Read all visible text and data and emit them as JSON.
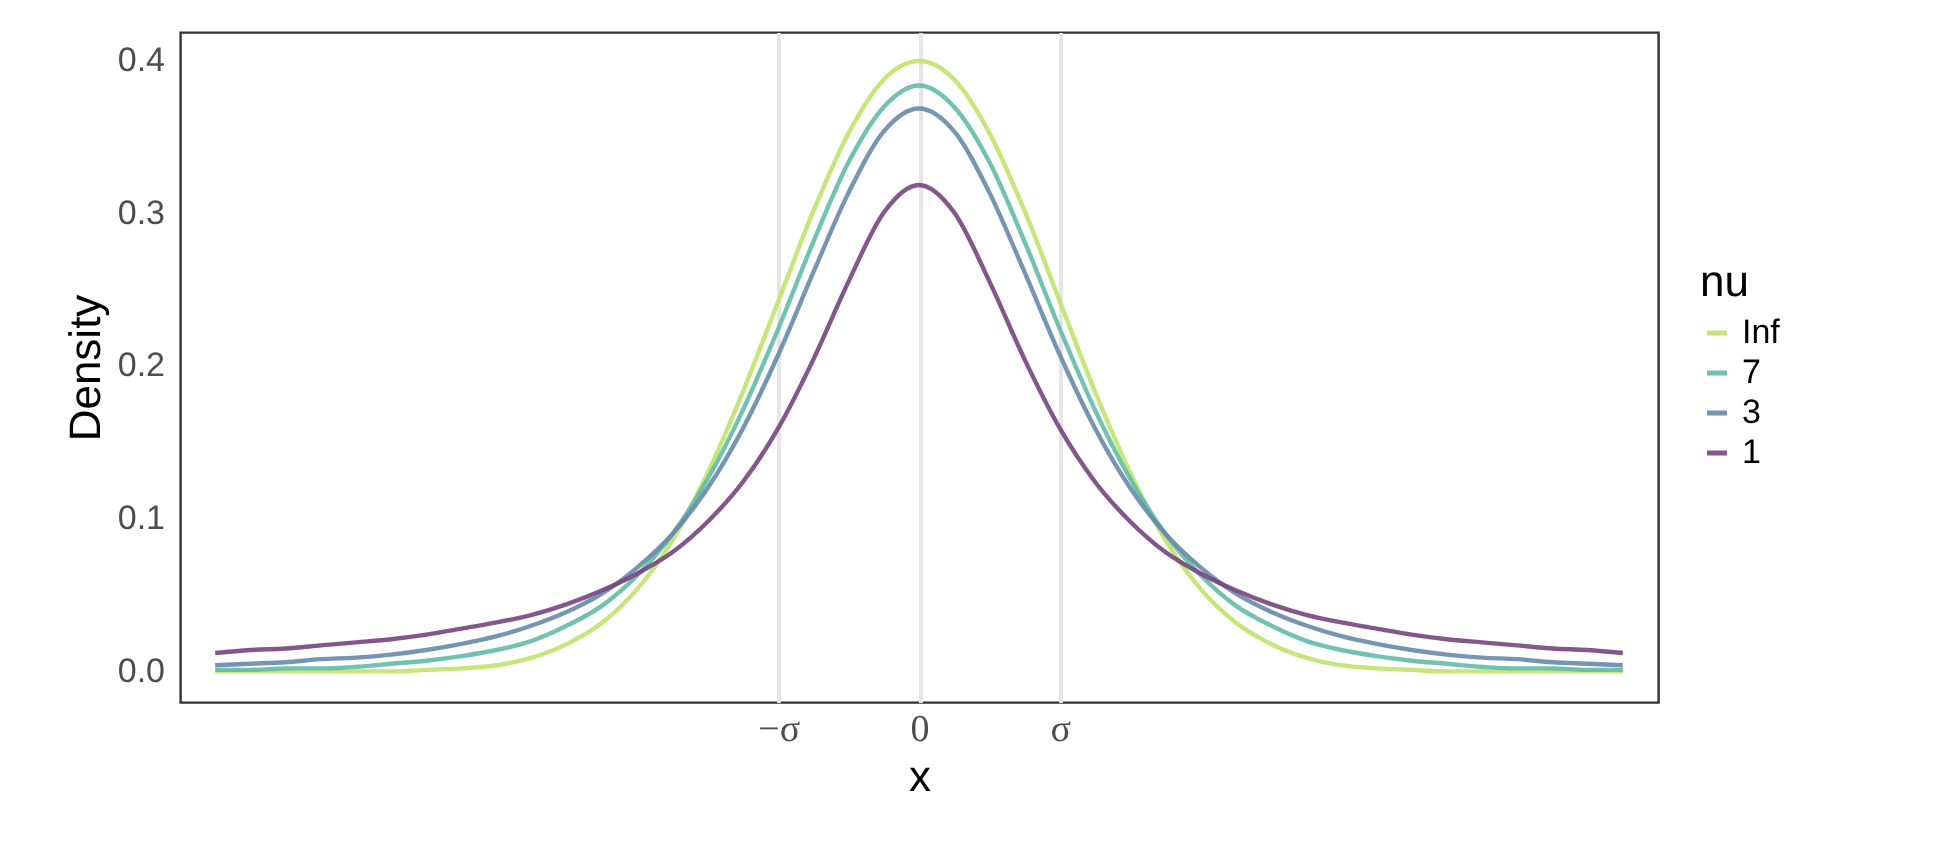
{
  "chart_data": {
    "type": "line",
    "xlabel": "x",
    "ylabel": "Density",
    "legend_title": "nu",
    "legend": "right",
    "grid": "x",
    "categories": [
      null,
      null,
      null,
      null,
      null,
      null,
      null,
      null,
      null,
      null,
      null,
      null,
      null,
      null,
      null,
      null,
      "−σ",
      null,
      null,
      null,
      "0",
      null,
      null,
      null,
      "σ",
      null,
      null,
      null,
      null,
      null,
      null,
      null,
      null,
      null,
      null,
      null,
      null,
      null,
      null,
      null,
      null
    ],
    "ylim": [
      -0.02,
      0.418
    ],
    "yticks": [
      {
        "value": 0,
        "label": "0.0"
      },
      0.1,
      0.2,
      0.3,
      0.4
    ],
    "series": [
      {
        "name": "Inf",
        "color": "#bfe36a",
        "values": [
          0,
          0,
          0,
          0,
          0,
          0,
          0.001,
          0.002,
          0.004,
          0.009,
          0.018,
          0.032,
          0.054,
          0.086,
          0.13,
          0.183,
          0.242,
          0.301,
          0.352,
          0.387,
          0.399,
          0.387,
          0.352,
          0.301,
          0.242,
          0.183,
          0.13,
          0.086,
          0.054,
          0.032,
          0.018,
          0.009,
          0.004,
          0.002,
          0.001,
          0,
          0,
          0,
          0,
          0,
          0
        ]
      },
      {
        "name": "7",
        "color": "#62bba5",
        "values": [
          0.001,
          0.001,
          0.002,
          0.002,
          0.003,
          0.005,
          0.007,
          0.01,
          0.014,
          0.02,
          0.03,
          0.043,
          0.063,
          0.09,
          0.126,
          0.171,
          0.224,
          0.281,
          0.333,
          0.369,
          0.383,
          0.369,
          0.333,
          0.281,
          0.224,
          0.171,
          0.126,
          0.09,
          0.063,
          0.043,
          0.03,
          0.02,
          0.014,
          0.01,
          0.007,
          0.005,
          0.003,
          0.002,
          0.002,
          0.001,
          0.001
        ]
      },
      {
        "name": "3",
        "color": "#6789ab",
        "values": [
          0.004,
          0.005,
          0.006,
          0.008,
          0.009,
          0.011,
          0.014,
          0.018,
          0.023,
          0.03,
          0.039,
          0.051,
          0.068,
          0.09,
          0.12,
          0.159,
          0.207,
          0.261,
          0.313,
          0.353,
          0.368,
          0.353,
          0.313,
          0.261,
          0.207,
          0.159,
          0.12,
          0.09,
          0.068,
          0.051,
          0.039,
          0.03,
          0.023,
          0.018,
          0.014,
          0.011,
          0.009,
          0.008,
          0.006,
          0.005,
          0.004
        ]
      },
      {
        "name": "1",
        "color": "#75457f",
        "values": [
          0.012,
          0.014,
          0.015,
          0.017,
          0.019,
          0.021,
          0.024,
          0.028,
          0.032,
          0.037,
          0.044,
          0.053,
          0.064,
          0.078,
          0.098,
          0.124,
          0.159,
          0.204,
          0.255,
          0.3,
          0.318,
          0.3,
          0.255,
          0.204,
          0.159,
          0.124,
          0.098,
          0.078,
          0.064,
          0.053,
          0.044,
          0.037,
          0.032,
          0.028,
          0.024,
          0.021,
          0.019,
          0.017,
          0.015,
          0.014,
          0.012
        ]
      }
    ]
  }
}
